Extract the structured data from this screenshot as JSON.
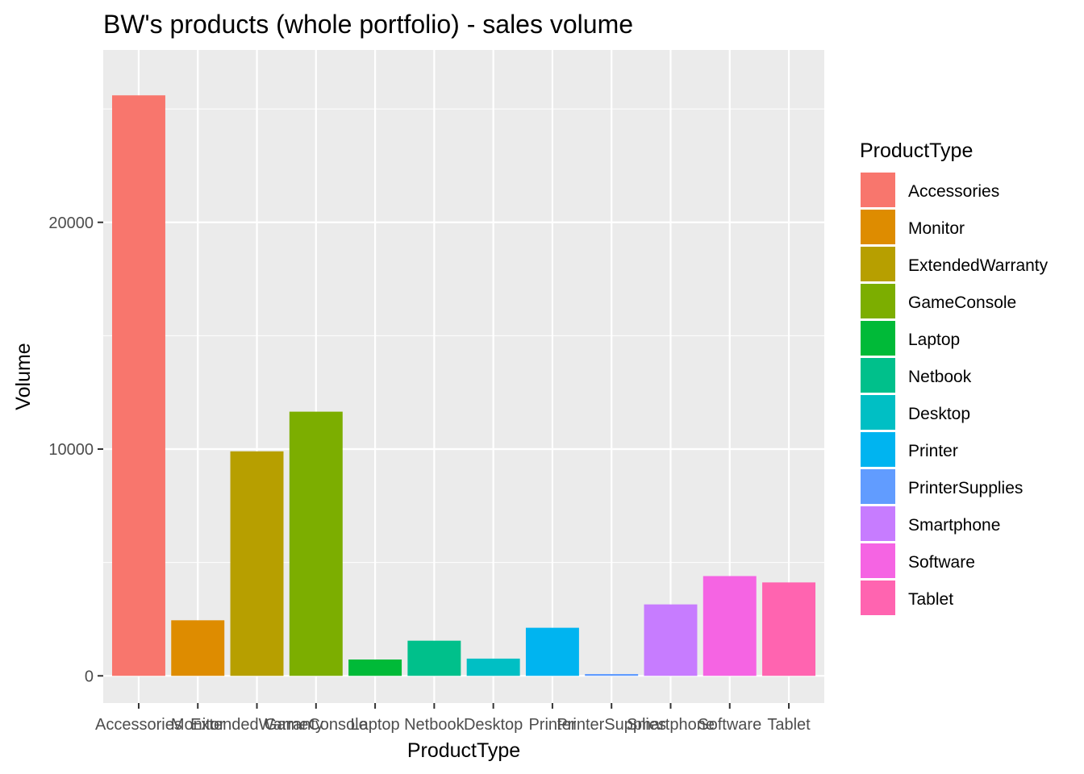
{
  "chart_data": {
    "type": "bar",
    "title": "BW's products (whole portfolio) - sales volume",
    "xlabel": "ProductType",
    "ylabel": "Volume",
    "categories": [
      "Accessories",
      "Monitor",
      "ExtendedWarranty",
      "GameConsole",
      "Laptop",
      "Netbook",
      "Desktop",
      "Printer",
      "PrinterSupplies",
      "Smartphone",
      "Software",
      "Tablet"
    ],
    "values": [
      25600,
      2450,
      9900,
      11650,
      720,
      1550,
      760,
      2120,
      80,
      3150,
      4400,
      4120
    ],
    "colors": [
      "#F8766D",
      "#DE8C00",
      "#B79F00",
      "#7CAE00",
      "#00BA38",
      "#00C08B",
      "#00BFC4",
      "#00B4F0",
      "#619CFF",
      "#C77CFF",
      "#F564E3",
      "#FF64B0"
    ],
    "ylim": [
      -1200,
      27600
    ],
    "yticks": [
      0,
      10000,
      20000
    ],
    "ytick_labels": [
      "0",
      "10000",
      "20000"
    ],
    "grid": true,
    "panel_background": "#EBEBEB",
    "legend": {
      "title": "ProductType",
      "position": "right",
      "labels": [
        "Accessories",
        "Monitor",
        "ExtendedWarranty",
        "GameConsole",
        "Laptop",
        "Netbook",
        "Desktop",
        "Printer",
        "PrinterSupplies",
        "Smartphone",
        "Software",
        "Tablet"
      ]
    }
  }
}
